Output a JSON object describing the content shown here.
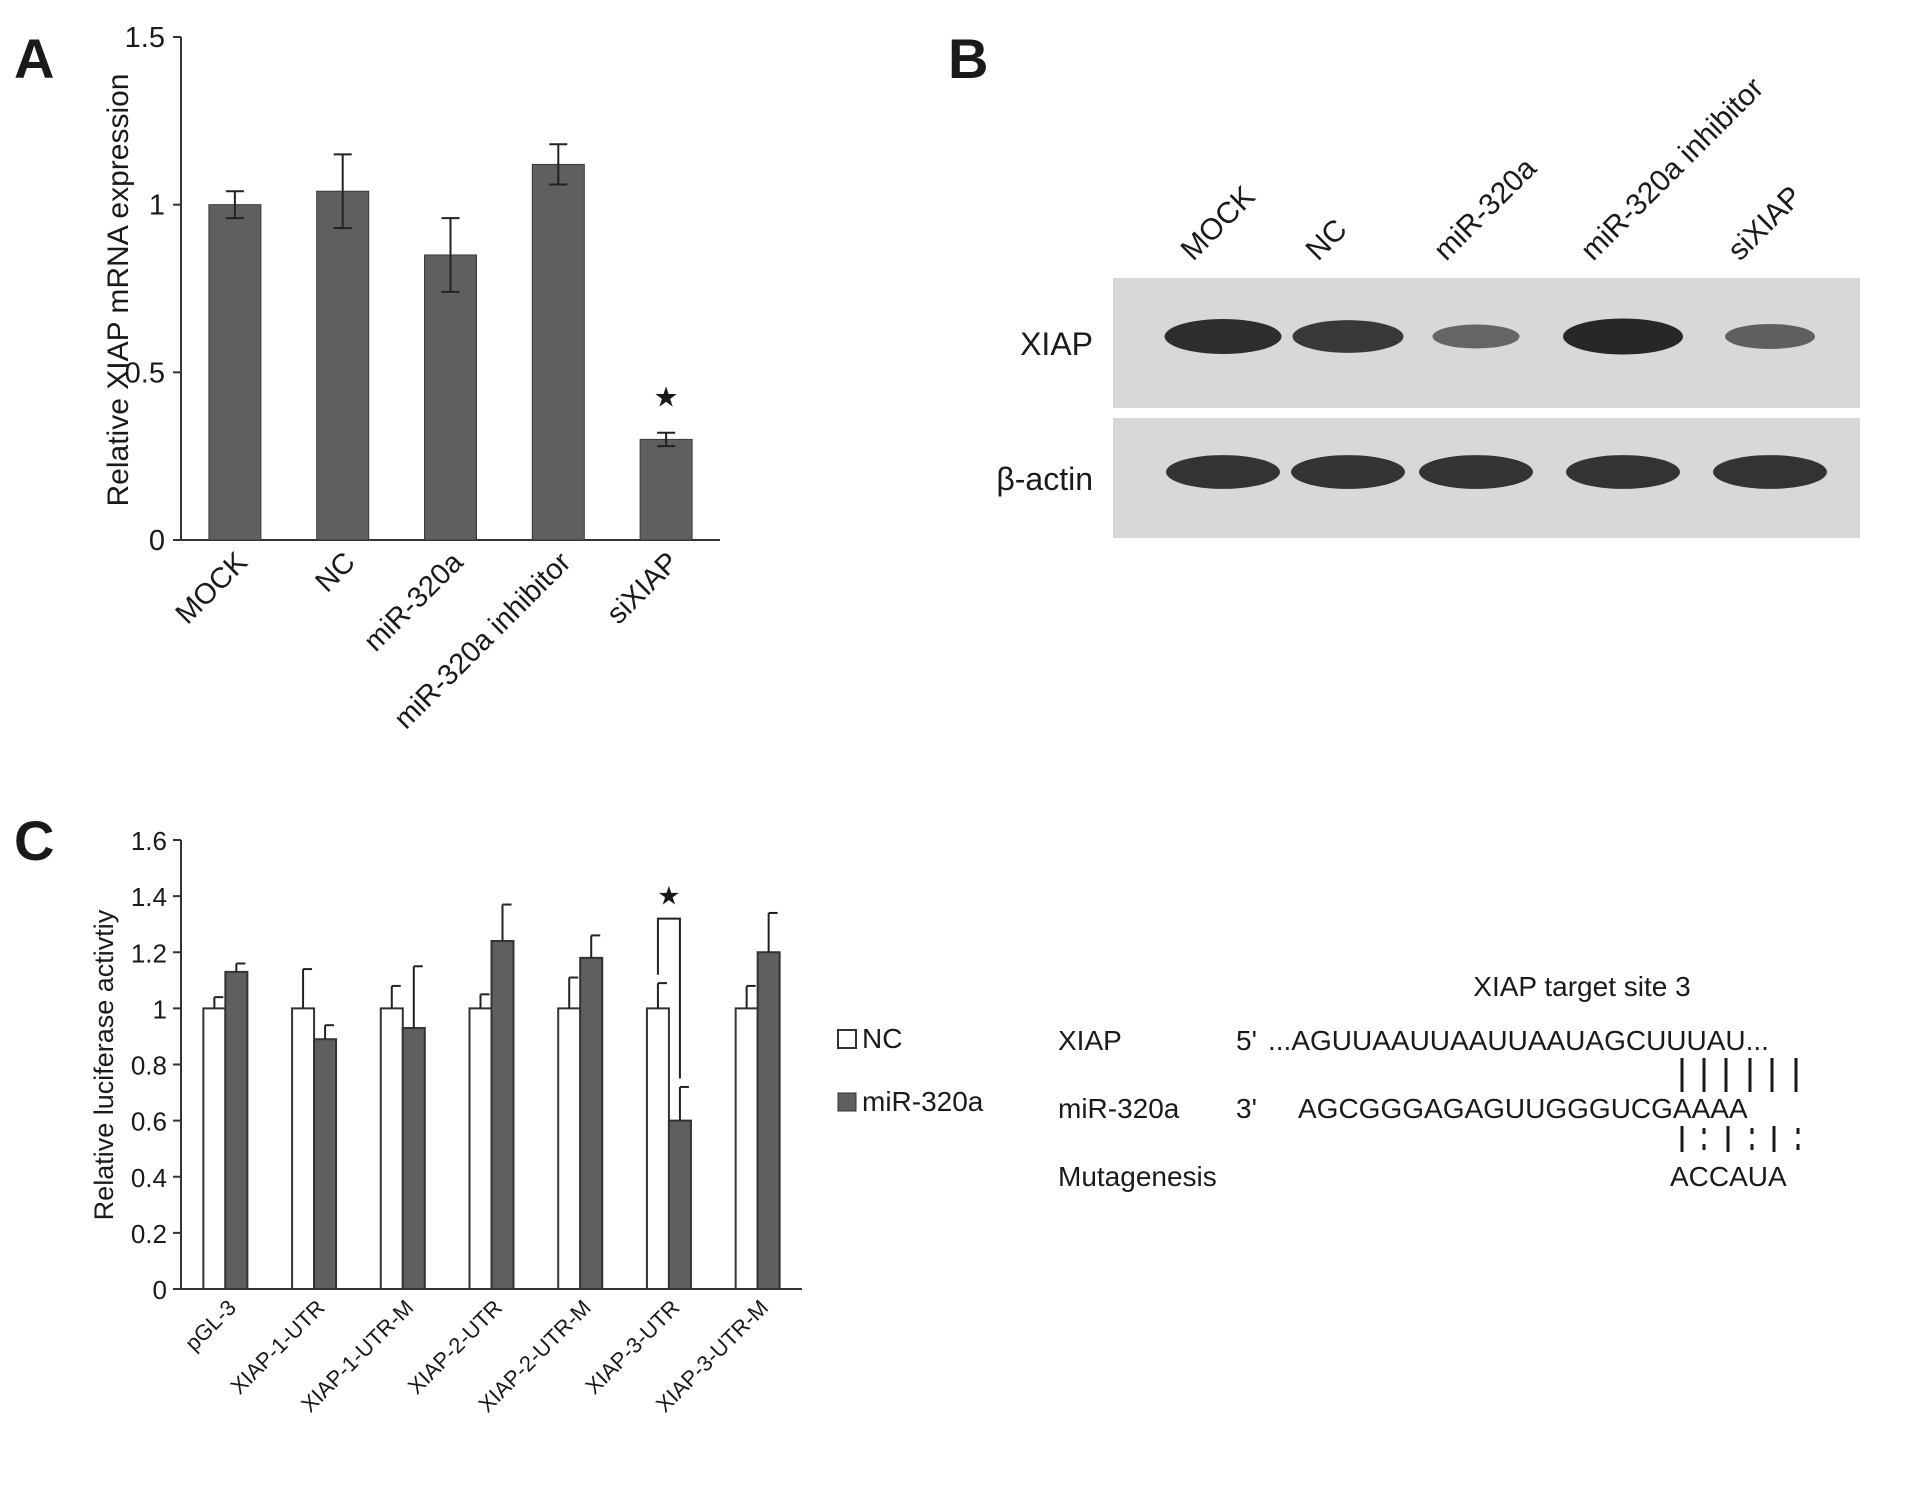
{
  "panels": {
    "a": "A",
    "b": "B",
    "c": "C"
  },
  "colors": {
    "dark_bar": "#5f5f5f",
    "nc_bar": "#ffffff",
    "axis": "#333333",
    "blot_bg": "#d8d8d8",
    "band": "#1e1e1e"
  },
  "chart_data": [
    {
      "id": "A",
      "type": "bar",
      "ylabel": "Relative XIAP mRNA expression",
      "ylim": [
        0,
        1.5
      ],
      "yticks": [
        "0",
        "0.5",
        "1",
        "1.5"
      ],
      "categories": [
        "MOCK",
        "NC",
        "miR-320a",
        "miR-320a inhibitor",
        "siXIAP"
      ],
      "values": [
        1.0,
        1.04,
        0.85,
        1.12,
        0.3
      ],
      "errors": [
        0.04,
        0.11,
        0.11,
        0.06,
        0.02
      ],
      "annotations": [
        {
          "category": "siXIAP",
          "text": "★"
        }
      ]
    },
    {
      "id": "C",
      "type": "bar",
      "ylabel": "Relative luciferase activtiy",
      "ylim": [
        0,
        1.6
      ],
      "yticks": [
        "0",
        "0.2",
        "0.4",
        "0.6",
        "0.8",
        "1",
        "1.2",
        "1.4",
        "1.6"
      ],
      "categories": [
        "pGL-3",
        "XIAP-1-UTR",
        "XIAP-1-UTR-M",
        "XIAP-2-UTR",
        "XIAP-2-UTR-M",
        "XIAP-3-UTR",
        "XIAP-3-UTR-M"
      ],
      "series": [
        {
          "name": "NC",
          "values": [
            1.0,
            1.0,
            1.0,
            1.0,
            1.0,
            1.0,
            1.0
          ],
          "errors": [
            0.04,
            0.14,
            0.08,
            0.05,
            0.11,
            0.09,
            0.08
          ]
        },
        {
          "name": "miR-320a",
          "values": [
            1.13,
            0.89,
            0.93,
            1.24,
            1.18,
            0.6,
            1.2
          ],
          "errors": [
            0.03,
            0.05,
            0.22,
            0.13,
            0.08,
            0.12,
            0.14
          ]
        }
      ],
      "legend": [
        "NC",
        "miR-320a"
      ],
      "annotations": [
        {
          "category": "XIAP-3-UTR",
          "text": "★"
        }
      ]
    }
  ],
  "blot": {
    "lanes": [
      "MOCK",
      "NC",
      "miR-320a",
      "miR-320a inhibitor",
      "siXIAP"
    ],
    "rows": [
      {
        "label": "XIAP",
        "intensity": [
          0.95,
          0.85,
          0.45,
          1.0,
          0.5
        ]
      },
      {
        "label": "β-actin",
        "intensity": [
          0.9,
          0.9,
          0.9,
          0.9,
          0.9
        ]
      }
    ]
  },
  "sequence": {
    "title": "XIAP target site 3",
    "rows": [
      {
        "label": "XIAP",
        "end": "5'",
        "seq": "...AGUUAAUUAAUUAAUAGCUUUAU..."
      },
      {
        "label": "miR-320a",
        "end": "3'",
        "seq": "AGCGGGAGAGUUGGGUCGAAAA"
      },
      {
        "label": "Mutagenesis",
        "end": "",
        "seq": "ACCAUA"
      }
    ]
  }
}
